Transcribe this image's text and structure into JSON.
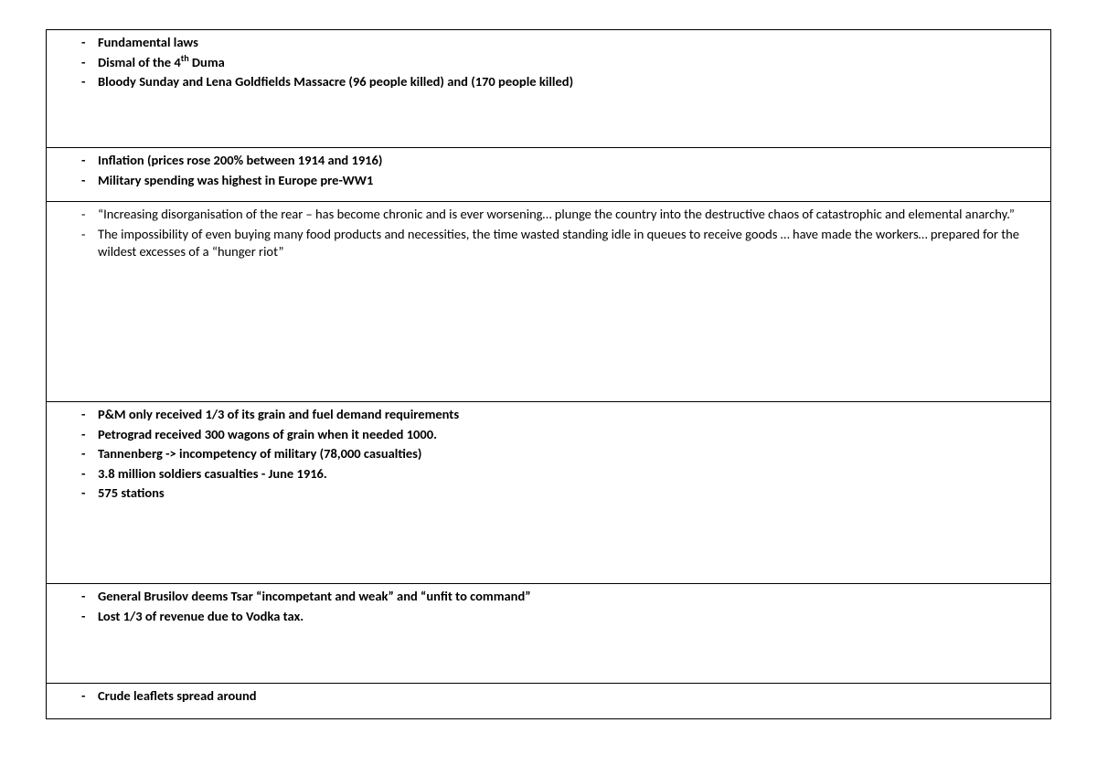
{
  "rows": [
    {
      "heightClass": "h-120",
      "bold": true,
      "items": [
        "Fundamental laws",
        "Dismal of the 4<sup>th</sup> Duma",
        "Bloody Sunday and Lena Goldfields Massacre (96 people killed) and (170 people killed)"
      ]
    },
    {
      "heightClass": "h-50",
      "bold": true,
      "items": [
        "Inflation (prices rose 200% between 1914 and 1916)",
        "Military spending was highest in Europe pre-WW1"
      ]
    },
    {
      "heightClass": "h-210",
      "bold": false,
      "items": [
        "“Increasing disorganisation of the rear – has become chronic and is ever worsening… plunge the country into the destructive chaos of catastrophic and elemental anarchy.”",
        "The impossibility of even buying many food products and necessities, the time wasted standing idle in queues to receive goods … have made the workers… prepared for the wildest excesses of a “hunger riot”"
      ]
    },
    {
      "heightClass": "h-190",
      "bold": true,
      "items": [
        "P&amp;M only received 1/3 of its grain and fuel demand requirements",
        "Petrograd received 300 wagons of grain when it needed 1000.",
        "Tannenberg -> incompetency of military (78,000 casualties)",
        "3.8 million soldiers casualties - June 1916.",
        "575 stations"
      ]
    },
    {
      "heightClass": "h-100",
      "bold": true,
      "items": [
        "General Brusilov deems Tsar “incompetant and weak” and “unfit to command”",
        "Lost 1/3 of revenue due to Vodka tax."
      ]
    },
    {
      "heightClass": "h-30",
      "bold": true,
      "items": [
        "Crude leaflets spread around"
      ]
    }
  ],
  "colors": {
    "border": "#000000",
    "text": "#000000",
    "background": "#ffffff"
  },
  "font": {
    "family": "Calibri",
    "size_pt": 11
  }
}
